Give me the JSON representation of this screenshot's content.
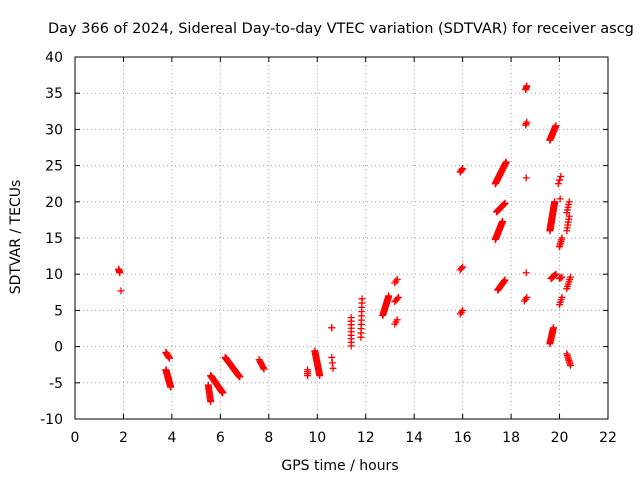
{
  "chart_data": {
    "type": "scatter",
    "title": "Day 366 of 2024, Sidereal Day-to-day VTEC variation (SDTVAR) for receiver ascg",
    "xlabel": "GPS time / hours",
    "ylabel": "SDTVAR / TECUs",
    "xlim": [
      0,
      22
    ],
    "ylim": [
      -10,
      40
    ],
    "xticks": [
      "0",
      "2",
      "4",
      "6",
      "8",
      "10",
      "12",
      "14",
      "16",
      "18",
      "20",
      "22"
    ],
    "yticks": [
      "-10",
      "-5",
      "0",
      "5",
      "10",
      "15",
      "20",
      "25",
      "30",
      "35",
      "40"
    ],
    "grid": true,
    "marker": "+",
    "marker_color": "#ff0000",
    "clusters": [
      {
        "x": [
          1.8,
          1.85,
          1.9
        ],
        "y": [
          10.7,
          10.2,
          9.8
        ],
        "n": 5
      },
      {
        "x": [
          1.9,
          1.9
        ],
        "y": [
          7.7,
          7.7
        ],
        "n": 1
      },
      {
        "x": [
          3.75,
          3.9
        ],
        "y": [
          -0.8,
          -1.6
        ],
        "n": 10
      },
      {
        "x": [
          3.75,
          3.95
        ],
        "y": [
          -3.2,
          -5.6
        ],
        "n": 28
      },
      {
        "x": [
          5.5,
          5.6
        ],
        "y": [
          -5.3,
          -7.6
        ],
        "n": 14
      },
      {
        "x": [
          5.6,
          6.1
        ],
        "y": [
          -4.0,
          -6.4
        ],
        "n": 45
      },
      {
        "x": [
          6.2,
          6.8
        ],
        "y": [
          -1.5,
          -4.2
        ],
        "n": 42
      },
      {
        "x": [
          7.6,
          7.8
        ],
        "y": [
          -1.8,
          -3.1
        ],
        "n": 8
      },
      {
        "x": [
          9.6,
          9.6
        ],
        "y": [
          -3.2,
          -4.0
        ],
        "n": 4
      },
      {
        "x": [
          9.9,
          10.1
        ],
        "y": [
          -0.6,
          -4.0
        ],
        "n": 22
      },
      {
        "x": [
          10.6,
          10.6
        ],
        "y": [
          2.6,
          2.6
        ],
        "n": 2
      },
      {
        "x": [
          10.6,
          10.65
        ],
        "y": [
          -1.5,
          -3.0
        ],
        "n": 3
      },
      {
        "x": [
          11.4,
          11.4
        ],
        "y": [
          0.1,
          4.0
        ],
        "n": 9
      },
      {
        "x": [
          11.8,
          11.85
        ],
        "y": [
          1.3,
          6.6
        ],
        "n": 10
      },
      {
        "x": [
          12.7,
          12.95
        ],
        "y": [
          4.3,
          7.0
        ],
        "n": 20
      },
      {
        "x": [
          13.2,
          13.3
        ],
        "y": [
          8.8,
          9.3
        ],
        "n": 3
      },
      {
        "x": [
          13.2,
          13.35
        ],
        "y": [
          6.2,
          6.8
        ],
        "n": 4
      },
      {
        "x": [
          13.2,
          13.3
        ],
        "y": [
          3.1,
          3.7
        ],
        "n": 3
      },
      {
        "x": [
          15.9,
          16.0
        ],
        "y": [
          24.1,
          24.6
        ],
        "n": 4
      },
      {
        "x": [
          15.9,
          16.0
        ],
        "y": [
          10.6,
          11.0
        ],
        "n": 3
      },
      {
        "x": [
          15.9,
          16.0
        ],
        "y": [
          4.5,
          5.0
        ],
        "n": 3
      },
      {
        "x": [
          17.35,
          17.8
        ],
        "y": [
          22.5,
          25.5
        ],
        "n": 42
      },
      {
        "x": [
          17.4,
          17.75
        ],
        "y": [
          18.6,
          19.8
        ],
        "n": 16
      },
      {
        "x": [
          17.35,
          17.65
        ],
        "y": [
          14.8,
          17.3
        ],
        "n": 28
      },
      {
        "x": [
          17.45,
          17.75
        ],
        "y": [
          7.8,
          9.2
        ],
        "n": 16
      },
      {
        "x": [
          18.6,
          18.65
        ],
        "y": [
          35.5,
          36.0
        ],
        "n": 4
      },
      {
        "x": [
          18.6,
          18.65
        ],
        "y": [
          30.6,
          31.0
        ],
        "n": 3
      },
      {
        "x": [
          18.6,
          18.65
        ],
        "y": [
          23.3,
          23.3
        ],
        "n": 1
      },
      {
        "x": [
          18.6,
          18.65
        ],
        "y": [
          10.2,
          10.2
        ],
        "n": 1
      },
      {
        "x": [
          18.55,
          18.65
        ],
        "y": [
          6.3,
          6.8
        ],
        "n": 3
      },
      {
        "x": [
          19.6,
          19.85
        ],
        "y": [
          28.5,
          30.5
        ],
        "n": 30
      },
      {
        "x": [
          19.6,
          19.8
        ],
        "y": [
          16.0,
          20.0
        ],
        "n": 40
      },
      {
        "x": [
          19.65,
          19.85
        ],
        "y": [
          9.4,
          10.0
        ],
        "n": 8
      },
      {
        "x": [
          19.6,
          19.75
        ],
        "y": [
          0.4,
          2.6
        ],
        "n": 16
      },
      {
        "x": [
          19.95,
          20.05
        ],
        "y": [
          22.5,
          23.5
        ],
        "n": 3
      },
      {
        "x": [
          20.0,
          20.05
        ],
        "y": [
          20.4,
          20.4
        ],
        "n": 1
      },
      {
        "x": [
          20.0,
          20.1
        ],
        "y": [
          13.8,
          15.0
        ],
        "n": 6
      },
      {
        "x": [
          20.0,
          20.1
        ],
        "y": [
          9.4,
          9.6
        ],
        "n": 3
      },
      {
        "x": [
          20.0,
          20.1
        ],
        "y": [
          5.8,
          6.8
        ],
        "n": 4
      },
      {
        "x": [
          20.3,
          20.4
        ],
        "y": [
          18.5,
          20.0
        ],
        "n": 5
      },
      {
        "x": [
          20.3,
          20.4
        ],
        "y": [
          16.0,
          18.0
        ],
        "n": 6
      },
      {
        "x": [
          20.3,
          20.45
        ],
        "y": [
          8.0,
          9.6
        ],
        "n": 6
      },
      {
        "x": [
          20.3,
          20.45
        ],
        "y": [
          -1.0,
          -2.6
        ],
        "n": 8
      }
    ]
  }
}
